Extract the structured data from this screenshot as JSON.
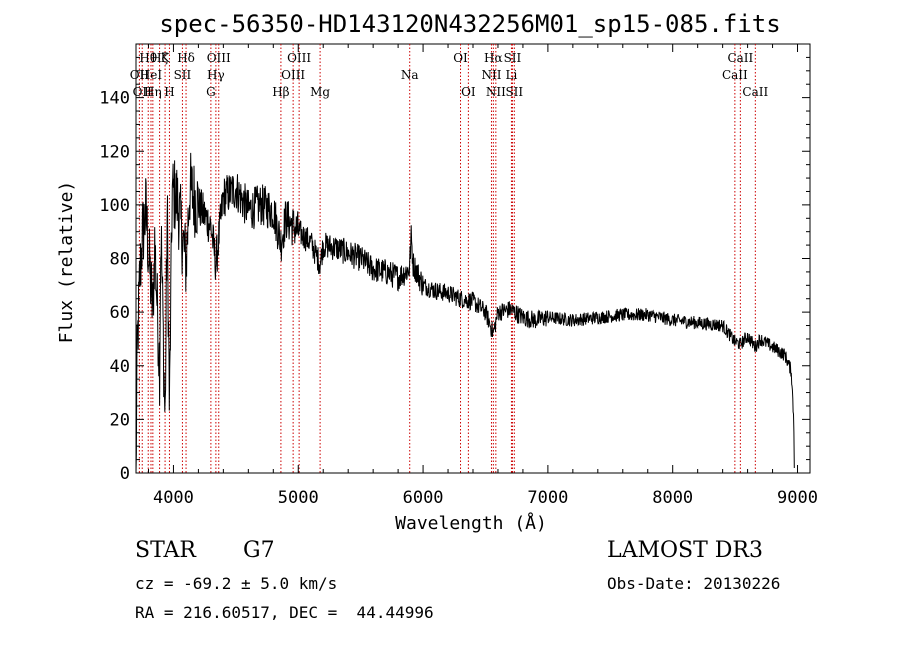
{
  "chart_data": {
    "type": "line",
    "title": "spec-56350-HD143120N432256M01_sp15-085.fits",
    "xlabel": "Wavelength (Å)",
    "ylabel": "Flux (relative)",
    "xlim": [
      3700,
      9100
    ],
    "ylim": [
      0,
      160
    ],
    "xticks": [
      4000,
      5000,
      6000,
      7000,
      8000,
      9000
    ],
    "yticks": [
      0,
      20,
      40,
      60,
      80,
      100,
      120,
      140
    ],
    "grid": false,
    "line_color": "#000000",
    "marker_color": "#cc0000",
    "spectrum_anchors": [
      [
        3700,
        0
      ],
      [
        3710,
        45
      ],
      [
        3730,
        72
      ],
      [
        3750,
        88
      ],
      [
        3780,
        98
      ],
      [
        3800,
        82
      ],
      [
        3835,
        60
      ],
      [
        3850,
        86
      ],
      [
        3889,
        40
      ],
      [
        3900,
        92
      ],
      [
        3933,
        18
      ],
      [
        3950,
        100
      ],
      [
        3968,
        22
      ],
      [
        3990,
        105
      ],
      [
        4030,
        102
      ],
      [
        4101,
        78
      ],
      [
        4130,
        106
      ],
      [
        4200,
        100
      ],
      [
        4300,
        92
      ],
      [
        4340,
        78
      ],
      [
        4400,
        103
      ],
      [
        4500,
        106
      ],
      [
        4600,
        98
      ],
      [
        4700,
        100
      ],
      [
        4800,
        98
      ],
      [
        4861,
        86
      ],
      [
        4900,
        95
      ],
      [
        5000,
        90
      ],
      [
        5100,
        86
      ],
      [
        5175,
        78
      ],
      [
        5200,
        85
      ],
      [
        5300,
        84
      ],
      [
        5400,
        82
      ],
      [
        5500,
        80
      ],
      [
        5600,
        76
      ],
      [
        5700,
        75
      ],
      [
        5800,
        73
      ],
      [
        5890,
        76
      ],
      [
        5905,
        88
      ],
      [
        5920,
        78
      ],
      [
        6000,
        70
      ],
      [
        6100,
        68
      ],
      [
        6200,
        67
      ],
      [
        6300,
        65
      ],
      [
        6400,
        64
      ],
      [
        6500,
        60
      ],
      [
        6563,
        52
      ],
      [
        6600,
        60
      ],
      [
        6700,
        61
      ],
      [
        6800,
        58
      ],
      [
        6900,
        57
      ],
      [
        7000,
        58
      ],
      [
        7200,
        57
      ],
      [
        7400,
        58
      ],
      [
        7600,
        59
      ],
      [
        7800,
        59
      ],
      [
        8000,
        57
      ],
      [
        8200,
        56
      ],
      [
        8400,
        55
      ],
      [
        8498,
        49
      ],
      [
        8542,
        48
      ],
      [
        8600,
        51
      ],
      [
        8662,
        47
      ],
      [
        8700,
        50
      ],
      [
        8800,
        47
      ],
      [
        8900,
        44
      ],
      [
        8950,
        38
      ],
      [
        8970,
        20
      ],
      [
        8975,
        0
      ]
    ],
    "spectral_lines": [
      {
        "wavelength": 3727,
        "label": "OII",
        "row": 1
      },
      {
        "wavelength": 3750,
        "label": "OII",
        "row": 2
      },
      {
        "wavelength": 3798,
        "label": "Hθ",
        "row": 0
      },
      {
        "wavelength": 3820,
        "label": "HeI",
        "row": 1
      },
      {
        "wavelength": 3835,
        "label": "Hη",
        "row": 2
      },
      {
        "wavelength": 3889,
        "label": "Hζ",
        "row": 0
      },
      {
        "wavelength": 3933,
        "label": "K",
        "row": 0
      },
      {
        "wavelength": 3968,
        "label": "H",
        "row": 2
      },
      {
        "wavelength": 4072,
        "label": "SII",
        "row": 1
      },
      {
        "wavelength": 4101,
        "label": "Hδ",
        "row": 0
      },
      {
        "wavelength": 4300,
        "label": "G",
        "row": 2
      },
      {
        "wavelength": 4340,
        "label": "Hγ",
        "row": 1
      },
      {
        "wavelength": 4363,
        "label": "OIII",
        "row": 0
      },
      {
        "wavelength": 4861,
        "label": "Hβ",
        "row": 2
      },
      {
        "wavelength": 4959,
        "label": "OIII",
        "row": 1
      },
      {
        "wavelength": 5007,
        "label": "OIII",
        "row": 0
      },
      {
        "wavelength": 5175,
        "label": "Mg",
        "row": 2
      },
      {
        "wavelength": 5893,
        "label": "Na",
        "row": 1
      },
      {
        "wavelength": 6300,
        "label": "OI",
        "row": 0
      },
      {
        "wavelength": 6363,
        "label": "OI",
        "row": 2
      },
      {
        "wavelength": 6548,
        "label": "NII",
        "row": 1
      },
      {
        "wavelength": 6563,
        "label": "Hα",
        "row": 0
      },
      {
        "wavelength": 6583,
        "label": "NII",
        "row": 2
      },
      {
        "wavelength": 6708,
        "label": "Li",
        "row": 1
      },
      {
        "wavelength": 6716,
        "label": "SII",
        "row": 0
      },
      {
        "wavelength": 6731,
        "label": "SII",
        "row": 2
      },
      {
        "wavelength": 8498,
        "label": "CaII",
        "row": 1
      },
      {
        "wavelength": 8542,
        "label": "CaII",
        "row": 0
      },
      {
        "wavelength": 8662,
        "label": "CaII",
        "row": 2
      }
    ]
  },
  "info": {
    "object_class": "STAR",
    "subclass": "G7",
    "survey": "LAMOST DR3",
    "redshift_line": "cz = -69.2 ± 5.0 km/s",
    "obs_date_line": "Obs-Date: 20130226",
    "coords_line": "RA = 216.60517, DEC =  44.44996"
  }
}
